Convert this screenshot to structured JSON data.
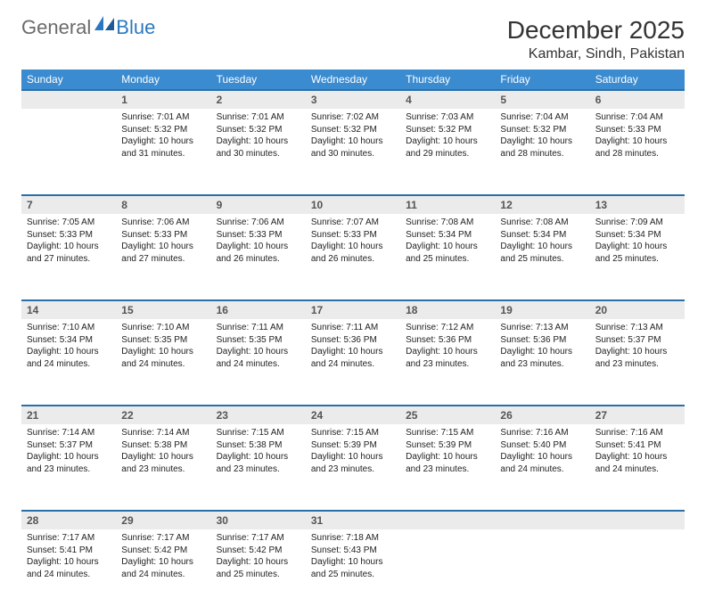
{
  "brand": {
    "text1": "General",
    "text2": "Blue"
  },
  "title": "December 2025",
  "location": "Kambar, Sindh, Pakistan",
  "colors": {
    "header_bg": "#3b8bd0",
    "header_text": "#ffffff",
    "daynum_bg": "#ebebeb",
    "daynum_border": "#2b6fa8",
    "logo_gray": "#6b6b6b",
    "logo_blue": "#2b78c2",
    "body_bg": "#ffffff"
  },
  "weekdays": [
    "Sunday",
    "Monday",
    "Tuesday",
    "Wednesday",
    "Thursday",
    "Friday",
    "Saturday"
  ],
  "weeks": [
    [
      null,
      {
        "n": "1",
        "sr": "7:01 AM",
        "ss": "5:32 PM",
        "dl": "10 hours and 31 minutes."
      },
      {
        "n": "2",
        "sr": "7:01 AM",
        "ss": "5:32 PM",
        "dl": "10 hours and 30 minutes."
      },
      {
        "n": "3",
        "sr": "7:02 AM",
        "ss": "5:32 PM",
        "dl": "10 hours and 30 minutes."
      },
      {
        "n": "4",
        "sr": "7:03 AM",
        "ss": "5:32 PM",
        "dl": "10 hours and 29 minutes."
      },
      {
        "n": "5",
        "sr": "7:04 AM",
        "ss": "5:32 PM",
        "dl": "10 hours and 28 minutes."
      },
      {
        "n": "6",
        "sr": "7:04 AM",
        "ss": "5:33 PM",
        "dl": "10 hours and 28 minutes."
      }
    ],
    [
      {
        "n": "7",
        "sr": "7:05 AM",
        "ss": "5:33 PM",
        "dl": "10 hours and 27 minutes."
      },
      {
        "n": "8",
        "sr": "7:06 AM",
        "ss": "5:33 PM",
        "dl": "10 hours and 27 minutes."
      },
      {
        "n": "9",
        "sr": "7:06 AM",
        "ss": "5:33 PM",
        "dl": "10 hours and 26 minutes."
      },
      {
        "n": "10",
        "sr": "7:07 AM",
        "ss": "5:33 PM",
        "dl": "10 hours and 26 minutes."
      },
      {
        "n": "11",
        "sr": "7:08 AM",
        "ss": "5:34 PM",
        "dl": "10 hours and 25 minutes."
      },
      {
        "n": "12",
        "sr": "7:08 AM",
        "ss": "5:34 PM",
        "dl": "10 hours and 25 minutes."
      },
      {
        "n": "13",
        "sr": "7:09 AM",
        "ss": "5:34 PM",
        "dl": "10 hours and 25 minutes."
      }
    ],
    [
      {
        "n": "14",
        "sr": "7:10 AM",
        "ss": "5:34 PM",
        "dl": "10 hours and 24 minutes."
      },
      {
        "n": "15",
        "sr": "7:10 AM",
        "ss": "5:35 PM",
        "dl": "10 hours and 24 minutes."
      },
      {
        "n": "16",
        "sr": "7:11 AM",
        "ss": "5:35 PM",
        "dl": "10 hours and 24 minutes."
      },
      {
        "n": "17",
        "sr": "7:11 AM",
        "ss": "5:36 PM",
        "dl": "10 hours and 24 minutes."
      },
      {
        "n": "18",
        "sr": "7:12 AM",
        "ss": "5:36 PM",
        "dl": "10 hours and 23 minutes."
      },
      {
        "n": "19",
        "sr": "7:13 AM",
        "ss": "5:36 PM",
        "dl": "10 hours and 23 minutes."
      },
      {
        "n": "20",
        "sr": "7:13 AM",
        "ss": "5:37 PM",
        "dl": "10 hours and 23 minutes."
      }
    ],
    [
      {
        "n": "21",
        "sr": "7:14 AM",
        "ss": "5:37 PM",
        "dl": "10 hours and 23 minutes."
      },
      {
        "n": "22",
        "sr": "7:14 AM",
        "ss": "5:38 PM",
        "dl": "10 hours and 23 minutes."
      },
      {
        "n": "23",
        "sr": "7:15 AM",
        "ss": "5:38 PM",
        "dl": "10 hours and 23 minutes."
      },
      {
        "n": "24",
        "sr": "7:15 AM",
        "ss": "5:39 PM",
        "dl": "10 hours and 23 minutes."
      },
      {
        "n": "25",
        "sr": "7:15 AM",
        "ss": "5:39 PM",
        "dl": "10 hours and 23 minutes."
      },
      {
        "n": "26",
        "sr": "7:16 AM",
        "ss": "5:40 PM",
        "dl": "10 hours and 24 minutes."
      },
      {
        "n": "27",
        "sr": "7:16 AM",
        "ss": "5:41 PM",
        "dl": "10 hours and 24 minutes."
      }
    ],
    [
      {
        "n": "28",
        "sr": "7:17 AM",
        "ss": "5:41 PM",
        "dl": "10 hours and 24 minutes."
      },
      {
        "n": "29",
        "sr": "7:17 AM",
        "ss": "5:42 PM",
        "dl": "10 hours and 24 minutes."
      },
      {
        "n": "30",
        "sr": "7:17 AM",
        "ss": "5:42 PM",
        "dl": "10 hours and 25 minutes."
      },
      {
        "n": "31",
        "sr": "7:18 AM",
        "ss": "5:43 PM",
        "dl": "10 hours and 25 minutes."
      },
      null,
      null,
      null
    ]
  ],
  "labels": {
    "sunrise": "Sunrise:",
    "sunset": "Sunset:",
    "daylight": "Daylight:"
  }
}
